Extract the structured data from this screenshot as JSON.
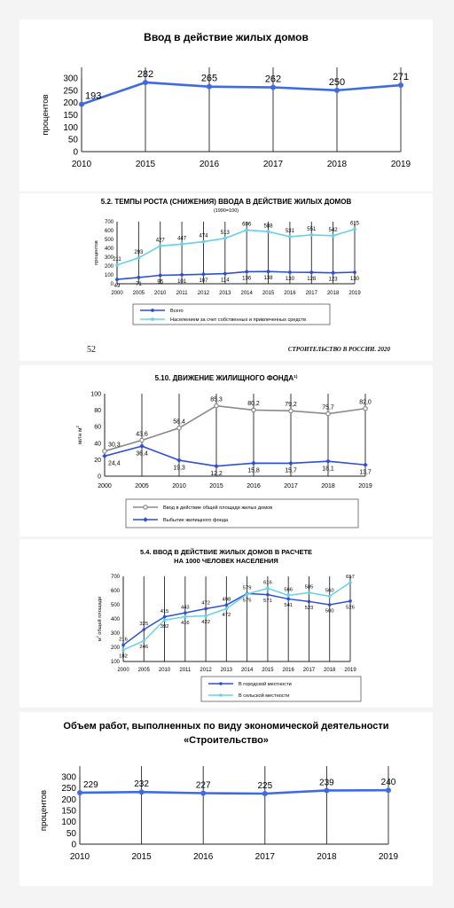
{
  "footer": {
    "page_number": "52",
    "publication": "СТРОИТЕЛЬСТВО В РОССИИ. 2020"
  },
  "chart_data": [
    {
      "type": "line",
      "title": "Ввод в действие жилых домов",
      "ylabel": "процентов",
      "categories": [
        "2010",
        "2015",
        "2016",
        "2017",
        "2018",
        "2019"
      ],
      "yticks": [
        "0",
        "50",
        "100",
        "150",
        "200",
        "250",
        "300"
      ],
      "ylim": [
        0,
        300
      ],
      "grid": "vertical",
      "series": [
        {
          "name": "",
          "values": [
            193,
            282,
            265,
            262,
            250,
            271
          ],
          "labels": [
            "193",
            "282",
            "265",
            "262",
            "250",
            "271"
          ],
          "color": "#3d6be6",
          "marker": "dot"
        }
      ]
    },
    {
      "type": "line",
      "title": "5.2. ТЕМПЫ РОСТА (СНИЖЕНИЯ) ВВОДА В ДЕЙСТВИЕ ЖИЛЫХ ДОМОВ",
      "subtitle": "(1990=100)",
      "ylabel": "процентов",
      "categories": [
        "2000",
        "2005",
        "2010",
        "2011",
        "2012",
        "2013",
        "2014",
        "2015",
        "2016",
        "2017",
        "2018",
        "2019"
      ],
      "yticks": [
        "0",
        "100",
        "200",
        "300",
        "400",
        "500",
        "600",
        "700"
      ],
      "ylim": [
        0,
        700
      ],
      "grid": "vertical",
      "legend_position": "bottom",
      "series": [
        {
          "name": "Всего",
          "values": [
            49,
            71,
            95,
            101,
            107,
            114,
            136,
            138,
            130,
            128,
            123,
            130
          ],
          "labels": [
            "49",
            "71",
            "95",
            "101",
            "107",
            "114",
            "136",
            "138",
            "130",
            "128",
            "123",
            "130"
          ],
          "color": "#2d4fd8",
          "marker": "dot"
        },
        {
          "name": "Населением за счет собственных и привлеченных средств",
          "values": [
            211,
            293,
            427,
            447,
            474,
            513,
            606,
            588,
            531,
            551,
            542,
            615
          ],
          "labels": [
            "211",
            "293",
            "427",
            "447",
            "474",
            "513",
            "606",
            "588",
            "531",
            "551",
            "542",
            "615"
          ],
          "color": "#66d0ea",
          "marker": "dot"
        }
      ]
    },
    {
      "type": "line",
      "title": "5.10. ДВИЖЕНИЕ ЖИЛИЩНОГО ФОНДА",
      "title_note": "1)",
      "ylabel": "млн м",
      "ylabel_sup": "2",
      "categories": [
        "2000",
        "2005",
        "2010",
        "2015",
        "2016",
        "2017",
        "2018",
        "2019"
      ],
      "yticks": [
        "0",
        "20",
        "40",
        "60",
        "80",
        "100"
      ],
      "ylim": [
        0,
        100
      ],
      "grid": "vertical",
      "legend_position": "bottom",
      "series": [
        {
          "name": "Ввод в действие общей площади жилых домов",
          "values": [
            30.3,
            43.6,
            58.4,
            85.3,
            80.2,
            79.2,
            75.7,
            82.0
          ],
          "labels": [
            "30,3",
            "43,6",
            "58,4",
            "85,3",
            "80,2",
            "79,2",
            "75,7",
            "82,0"
          ],
          "color": "#8a8a8a",
          "marker": "ring"
        },
        {
          "name": "Выбытие жилищного фонда",
          "values": [
            24.4,
            36.4,
            19.3,
            12.2,
            15.8,
            15.7,
            18.1,
            13.7
          ],
          "labels": [
            "24,4",
            "36,4",
            "19,3",
            "12,2",
            "15,8",
            "15,7",
            "18,1",
            "13,7"
          ],
          "color": "#2d4fd8",
          "marker": "diamond"
        }
      ]
    },
    {
      "type": "line",
      "title": "5.4. ВВОД В ДЕЙСТВИЕ ЖИЛЫХ ДОМОВ В РАСЧЕТЕ",
      "title2": "НА 1000 ЧЕЛОВЕК НАСЕЛЕНИЯ",
      "ylabel": "м",
      "ylabel_sup": "2",
      "ylabel_rest": " общей площади",
      "categories": [
        "2000",
        "2005",
        "2010",
        "2011",
        "2012",
        "2013",
        "2014",
        "2015",
        "2016",
        "2017",
        "2018",
        "2019"
      ],
      "yticks": [
        "100",
        "200",
        "300",
        "400",
        "500",
        "600",
        "700"
      ],
      "ylim": [
        100,
        700
      ],
      "grid": "vertical",
      "legend_position": "bottom",
      "series": [
        {
          "name": "В городской местности",
          "values": [
            216,
            325,
            415,
            443,
            472,
            498,
            579,
            571,
            541,
            523,
            500,
            526
          ],
          "labels": [
            "216",
            "325",
            "415",
            "443",
            "472",
            "498",
            "579",
            "571",
            "541",
            "523",
            "500",
            "526"
          ],
          "color": "#2d4fd8",
          "marker": "dot"
        },
        {
          "name": "В сельской местности",
          "values": [
            182,
            246,
            392,
            416,
            422,
            472,
            575,
            616,
            566,
            585,
            560,
            657
          ],
          "labels": [
            "182",
            "246",
            "392",
            "416",
            "422",
            "472",
            "575",
            "616",
            "566",
            "585",
            "560",
            "657"
          ],
          "color": "#66d0ea",
          "marker": "dot"
        }
      ]
    },
    {
      "type": "line",
      "title": "Объем работ, выполненных по виду экономической деятельности",
      "title2": "«Строительство»",
      "ylabel": "процентов",
      "categories": [
        "2010",
        "2015",
        "2016",
        "2017",
        "2018",
        "2019"
      ],
      "yticks": [
        "0",
        "50",
        "100",
        "150",
        "200",
        "250",
        "300"
      ],
      "ylim": [
        0,
        300
      ],
      "grid": "vertical",
      "series": [
        {
          "name": "",
          "values": [
            229,
            232,
            227,
            225,
            239,
            240
          ],
          "labels": [
            "229",
            "232",
            "227",
            "225",
            "239",
            "240"
          ],
          "color": "#3d6be6",
          "marker": "dot"
        }
      ]
    }
  ]
}
